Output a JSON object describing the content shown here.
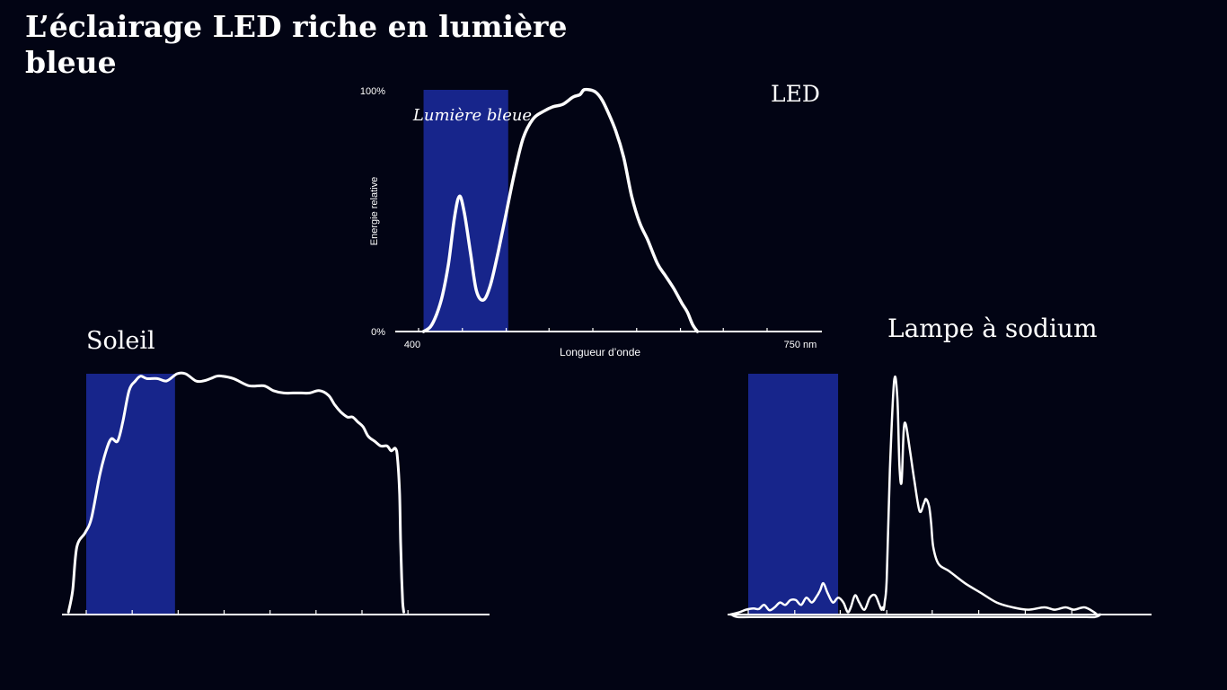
{
  "title": "L’éclairage LED riche en lumière bleue",
  "colors": {
    "background": "#020414",
    "blue_band": "#17258b",
    "curve": "#ffffff"
  },
  "chart_data": [
    {
      "type": "line",
      "title": "LED",
      "band_label": "Lumière bleue",
      "xlabel": "Longueur d’onde",
      "ylabel": "Energie relative",
      "x_tick_labels": [
        "400",
        "750 nm"
      ],
      "y_tick_labels": [
        "0%",
        "100%"
      ],
      "xlim": [
        400,
        750
      ],
      "ylim": [
        0,
        100
      ],
      "blue_band": [
        405,
        490
      ],
      "x_ticks": [
        400,
        444,
        488,
        531,
        575,
        619,
        663,
        706,
        750
      ],
      "series": [
        {
          "x": [
            405,
            412,
            418,
            424,
            430,
            436,
            441,
            446,
            452,
            458,
            465,
            472,
            480,
            488,
            496,
            505,
            515,
            525,
            535,
            545,
            555,
            562,
            566,
            572,
            578,
            584,
            590,
            598,
            606,
            614,
            622,
            630,
            640,
            648,
            656,
            664,
            670,
            675,
            680
          ],
          "y": [
            0,
            2,
            7,
            15,
            28,
            47,
            56,
            49,
            33,
            17,
            13,
            19,
            33,
            49,
            65,
            80,
            88,
            91,
            93,
            94,
            97,
            98,
            100,
            100,
            99,
            96,
            91,
            83,
            72,
            56,
            45,
            38,
            28,
            23,
            18,
            12,
            8,
            3,
            0
          ]
        }
      ]
    },
    {
      "type": "line",
      "title": "Soleil",
      "xlim": [
        400,
        750
      ],
      "ylim": [
        0,
        100
      ],
      "blue_band": [
        400,
        485
      ],
      "x_ticks": [
        400,
        444,
        488,
        532,
        576,
        620,
        664,
        708
      ],
      "series": [
        {
          "x": [
            383,
            387,
            391,
            399,
            405,
            413,
            419,
            424,
            430,
            435,
            441,
            447,
            452,
            458,
            468,
            477,
            487,
            495,
            505,
            512,
            519,
            525,
            530,
            541,
            556,
            570,
            579,
            589,
            598,
            606,
            614,
            623,
            632,
            638,
            644,
            650,
            655,
            660,
            665,
            670,
            676,
            682,
            688,
            692,
            696,
            698,
            700,
            701,
            702,
            703,
            704
          ],
          "y": [
            1,
            10,
            28,
            34,
            40,
            58,
            68,
            73,
            72,
            80,
            93,
            97,
            99,
            98,
            98,
            97,
            100,
            100,
            97,
            97,
            98,
            99,
            99,
            98,
            95,
            95,
            93,
            92,
            92,
            92,
            92,
            93,
            91,
            87,
            84,
            82,
            82,
            80,
            78,
            74,
            72,
            70,
            70,
            68,
            69,
            65,
            50,
            30,
            15,
            5,
            1
          ]
        }
      ]
    },
    {
      "type": "line",
      "title": "Lampe à sodium",
      "xlim": [
        400,
        750
      ],
      "ylim": [
        0,
        100
      ],
      "blue_band": [
        400,
        485
      ],
      "x_ticks": [
        400,
        444,
        487,
        531,
        574,
        618,
        662,
        706
      ],
      "series": [
        {
          "x": [
            383,
            392,
            398,
            405,
            410,
            415,
            420,
            425,
            430,
            435,
            440,
            445,
            450,
            455,
            460,
            464,
            468,
            471,
            475,
            480,
            485,
            490,
            494,
            497,
            501,
            505,
            510,
            515,
            520,
            524,
            526,
            527,
            528,
            529,
            531,
            534,
            538,
            541,
            543,
            545,
            547,
            549,
            553,
            557,
            562,
            566,
            568,
            571,
            573,
            575,
            580,
            590,
            605,
            620,
            635,
            650,
            665,
            680,
            690,
            700,
            708,
            718,
            727,
            730,
            733,
            728,
            715,
            700,
            680,
            650,
            610,
            560,
            510,
            470,
            440,
            410,
            390,
            384
          ],
          "y": [
            0,
            1,
            2,
            2.5,
            2.3,
            4,
            1.8,
            3,
            5,
            4,
            6,
            6,
            4,
            7,
            5,
            7,
            10,
            13,
            9,
            5,
            7,
            5,
            1,
            3,
            8,
            5,
            2,
            7,
            8,
            4,
            2,
            3,
            2,
            5,
            15,
            60,
            97,
            90,
            62,
            55,
            76,
            79,
            68,
            56,
            43,
            46,
            48,
            45,
            38,
            28,
            21,
            18,
            13,
            9,
            5,
            3,
            2,
            3,
            2,
            3,
            2,
            3,
            1,
            0,
            0,
            -1,
            -1,
            -1,
            -1,
            -1,
            -1,
            -1,
            -1,
            -1,
            -1,
            -1,
            -1,
            0
          ]
        }
      ]
    }
  ]
}
